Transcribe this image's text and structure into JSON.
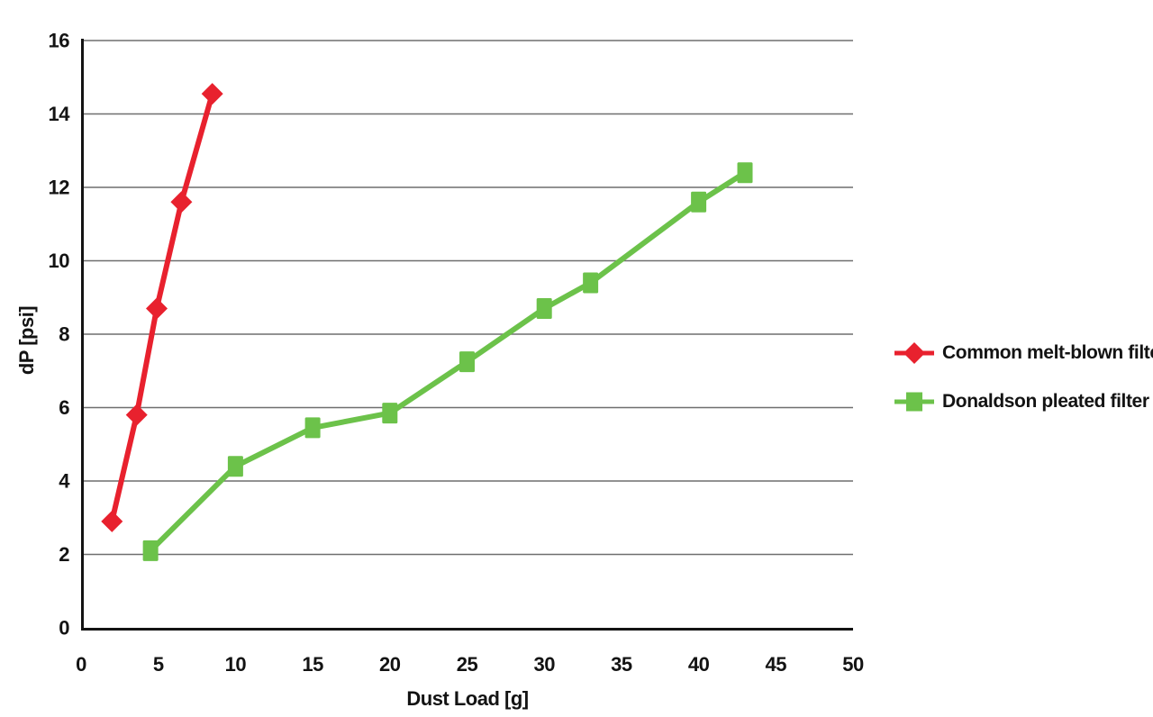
{
  "chart_data": {
    "type": "line",
    "title": "",
    "xlabel": "Dust Load [g]",
    "ylabel": "dP [psi]",
    "xlim": [
      0,
      50
    ],
    "ylim": [
      0,
      16
    ],
    "xticks": [
      0,
      5,
      10,
      15,
      20,
      25,
      30,
      35,
      40,
      45,
      50
    ],
    "yticks": [
      0,
      2,
      4,
      6,
      8,
      10,
      12,
      14,
      16
    ],
    "grid": "horizontal-only",
    "grid_color": "#6f6f6f",
    "axis_color": "#131313",
    "text_color": "#131313",
    "background_color": "#ffffff",
    "legend_position": "right",
    "series": [
      {
        "name": "Common melt-blown filter",
        "color": "#e8212e",
        "marker": "diamond",
        "points": [
          [
            2,
            2.9
          ],
          [
            3.6,
            5.8
          ],
          [
            4.9,
            8.7
          ],
          [
            6.5,
            11.6
          ],
          [
            8.5,
            14.55
          ]
        ]
      },
      {
        "name": "Donaldson pleated filter",
        "color": "#6cc24a",
        "marker": "square",
        "points": [
          [
            4.5,
            2.1
          ],
          [
            10,
            4.4
          ],
          [
            15,
            5.45
          ],
          [
            20,
            5.85
          ],
          [
            25,
            7.25
          ],
          [
            30,
            8.7
          ],
          [
            33,
            9.4
          ],
          [
            40,
            11.6
          ],
          [
            43,
            12.4
          ]
        ]
      }
    ]
  }
}
